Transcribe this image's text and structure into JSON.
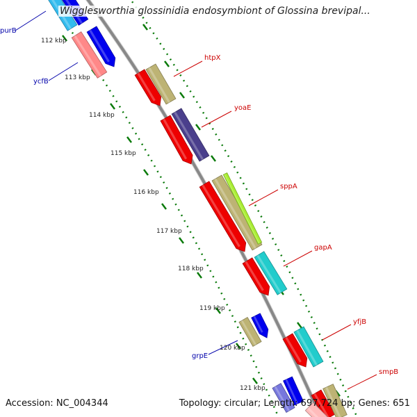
{
  "title": "Wigglesworthia glossinidia endosymbiont of Glossina brevipal...",
  "footer": {
    "accession": "Accession: NC_004344",
    "topology": "Topology: circular; Length: 697,724 bp; Genes: 651"
  },
  "backbone_color": "#888888",
  "tick_labels": [
    {
      "text": "112 kbp"
    },
    {
      "text": "113 kbp"
    },
    {
      "text": "114 kbp"
    },
    {
      "text": "115 kbp"
    },
    {
      "text": "116 kbp"
    },
    {
      "text": "117 kbp"
    },
    {
      "text": "118 kbp"
    },
    {
      "text": "119 kbp"
    },
    {
      "text": "120 kbp"
    },
    {
      "text": "121 kbp"
    }
  ],
  "gene_labels": [
    {
      "name": "purB",
      "strand": "reverse",
      "color": "#0000aa"
    },
    {
      "name": "ycfB",
      "strand": "reverse",
      "color": "#0000aa"
    },
    {
      "name": "grpE",
      "strand": "reverse",
      "color": "#0000aa"
    },
    {
      "name": "htpX",
      "strand": "forward",
      "color": "#cc0000"
    },
    {
      "name": "yoaE",
      "strand": "forward",
      "color": "#cc0000"
    },
    {
      "name": "sppA",
      "strand": "forward",
      "color": "#cc0000"
    },
    {
      "name": "gapA",
      "strand": "forward",
      "color": "#cc0000"
    },
    {
      "name": "yfjB",
      "strand": "forward",
      "color": "#cc0000"
    },
    {
      "name": "smpB",
      "strand": "forward",
      "color": "#cc0000"
    }
  ],
  "feature_colors": {
    "cds_forward": "#ee0000",
    "cds_reverse": "#ff8888",
    "tan": "#bdb374",
    "navy": "#4a3f8c",
    "lime": "#aaee33",
    "cyan": "#22cccc",
    "blue": "#0000ee",
    "periwinkle": "#7777dd",
    "skyblue": "#33bbee",
    "pink_light": "#ffbbbb",
    "tick_green": "#0a7a0a"
  }
}
